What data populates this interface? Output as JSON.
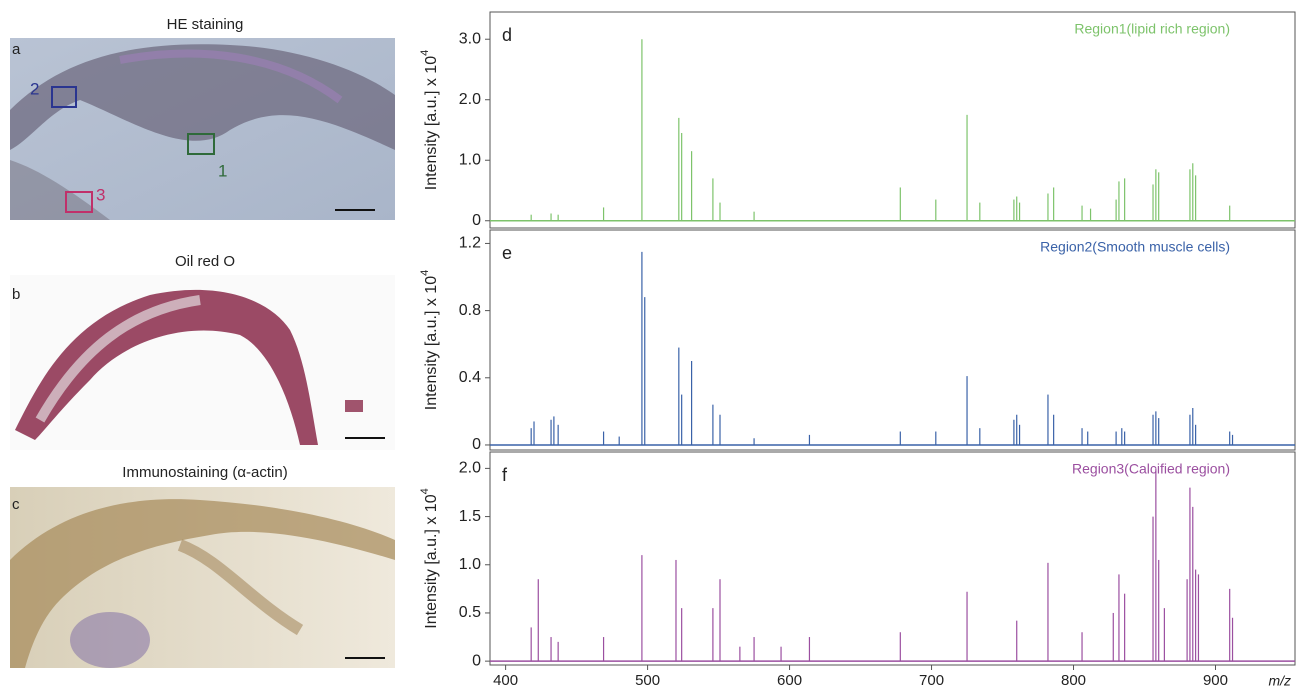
{
  "images": [
    {
      "letter": "a",
      "title": "HE staining",
      "regions": [
        "1",
        "2",
        "3"
      ]
    },
    {
      "letter": "b",
      "title": "Oil red O"
    },
    {
      "letter": "c",
      "title": "Immunostaining (α-actin)"
    }
  ],
  "chart_data": [
    {
      "type": "stem",
      "label": "d",
      "annotation": "Region1(lipid rich region)",
      "ylabel": "Intensity [a.u.] x 10",
      "ylabel_exponent": "4",
      "color": "#7dc36b",
      "xlim": [
        389,
        956
      ],
      "ylim": [
        -0.12,
        3.45
      ],
      "yticks": [
        0,
        {
          "value": 1,
          "label": "1.0"
        },
        {
          "value": 2,
          "label": "2.0"
        },
        {
          "value": 3,
          "label": "3.0"
        }
      ],
      "x": [
        418,
        432,
        437,
        469,
        496,
        522,
        524,
        531,
        546,
        551,
        575,
        678,
        703,
        725,
        734,
        758,
        760,
        762,
        782,
        786,
        806,
        812,
        830,
        832,
        836,
        856,
        858,
        860,
        882,
        884,
        886,
        910
      ],
      "values": [
        0.1,
        0.12,
        0.1,
        0.22,
        3.0,
        1.7,
        1.45,
        1.15,
        0.7,
        0.3,
        0.15,
        0.55,
        0.35,
        1.75,
        0.3,
        0.35,
        0.4,
        0.3,
        0.45,
        0.55,
        0.25,
        0.2,
        0.35,
        0.65,
        0.7,
        0.6,
        0.85,
        0.8,
        0.85,
        0.95,
        0.75,
        0.25
      ]
    },
    {
      "type": "stem",
      "label": "e",
      "annotation": "Region2(Smooth muscle cells)",
      "ylabel": "Intensity [a.u.] x 10",
      "ylabel_exponent": "4",
      "color": "#3a62a8",
      "xlim": [
        389,
        956
      ],
      "ylim": [
        -0.03,
        1.28
      ],
      "yticks": [
        0,
        0.4,
        0.8,
        1.2
      ],
      "x": [
        418,
        420,
        432,
        434,
        437,
        469,
        480,
        496,
        498,
        522,
        524,
        531,
        546,
        551,
        575,
        614,
        678,
        703,
        725,
        734,
        758,
        760,
        762,
        782,
        786,
        806,
        810,
        830,
        834,
        836,
        856,
        858,
        860,
        882,
        884,
        886,
        910,
        912
      ],
      "values": [
        0.1,
        0.14,
        0.15,
        0.17,
        0.12,
        0.08,
        0.05,
        1.15,
        0.88,
        0.58,
        0.3,
        0.5,
        0.24,
        0.18,
        0.04,
        0.06,
        0.08,
        0.08,
        0.41,
        0.1,
        0.15,
        0.18,
        0.12,
        0.3,
        0.18,
        0.1,
        0.08,
        0.08,
        0.1,
        0.08,
        0.18,
        0.2,
        0.16,
        0.18,
        0.22,
        0.12,
        0.08,
        0.06
      ]
    },
    {
      "type": "stem",
      "label": "f",
      "annotation": "Region3(Calcified region)",
      "ylabel": "Intensity [a.u.] x 10",
      "ylabel_exponent": "4",
      "color": "#9b4fa0",
      "xlim": [
        389,
        956
      ],
      "ylim": [
        -0.04,
        2.17
      ],
      "yticks": [
        0,
        0.5,
        {
          "value": 1,
          "label": "1.0"
        },
        1.5,
        {
          "value": 2,
          "label": "2.0"
        }
      ],
      "xticks": [
        400,
        500,
        600,
        700,
        800,
        900
      ],
      "xlabel": "m/z",
      "x": [
        418,
        423,
        432,
        437,
        469,
        496,
        520,
        524,
        546,
        551,
        565,
        575,
        594,
        614,
        678,
        725,
        760,
        782,
        806,
        828,
        832,
        836,
        856,
        858,
        860,
        864,
        880,
        882,
        884,
        886,
        888,
        910,
        912
      ],
      "values": [
        0.35,
        0.85,
        0.25,
        0.2,
        0.25,
        1.1,
        1.05,
        0.55,
        0.55,
        0.85,
        0.15,
        0.25,
        0.15,
        0.25,
        0.3,
        0.72,
        0.42,
        1.02,
        0.3,
        0.5,
        0.9,
        0.7,
        1.5,
        2.0,
        1.05,
        0.55,
        0.85,
        1.8,
        1.6,
        0.95,
        0.9,
        0.75,
        0.45
      ]
    }
  ]
}
